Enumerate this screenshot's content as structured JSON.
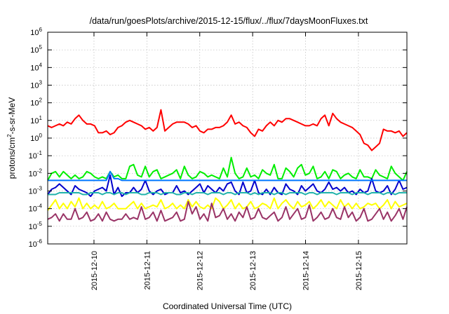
{
  "chart_data": {
    "type": "line",
    "title": "/data/run/goesPlots/archive/2015-12-15/flux/../flux/7daysMoonFluxes.txt",
    "xlabel": "Coordinated Universal Time (UTC)",
    "ylabel_base": "protons/cm",
    "ylabel_exp": "2",
    "ylabel_rest": "-s-sr-MeV",
    "yscale": "log",
    "ylim_exp": [
      -6,
      6
    ],
    "y_ticks": [
      {
        "exp": -6
      },
      {
        "exp": -5
      },
      {
        "exp": -4
      },
      {
        "exp": -3
      },
      {
        "exp": -2
      },
      {
        "exp": -1
      },
      {
        "exp": 0
      },
      {
        "exp": 1
      },
      {
        "exp": 2
      },
      {
        "exp": 3
      },
      {
        "exp": 4
      },
      {
        "exp": 5
      },
      {
        "exp": 6
      }
    ],
    "y_tick_base": "10",
    "x_range_days": [
      "2015-12-09 03:00",
      "2015-12-15 22:00"
    ],
    "x_ticks": [
      "2015-12-10",
      "2015-12-11",
      "2015-12-12",
      "2015-12-13",
      "2015-12-14",
      "2015-12-15"
    ],
    "grid": true,
    "series": [
      {
        "color": "#ff0000",
        "log10_values": [
          0.7,
          0.6,
          0.7,
          0.8,
          0.7,
          0.9,
          0.8,
          1.1,
          1.3,
          1.0,
          0.8,
          0.8,
          0.7,
          0.3,
          0.3,
          0.4,
          0.2,
          0.3,
          0.6,
          0.7,
          0.9,
          1.0,
          0.9,
          0.8,
          0.7,
          0.5,
          0.6,
          0.4,
          0.6,
          1.6,
          0.4,
          0.6,
          0.8,
          0.9,
          0.9,
          0.9,
          0.8,
          0.6,
          0.7,
          0.4,
          0.3,
          0.5,
          0.5,
          0.6,
          0.6,
          0.7,
          0.9,
          1.3,
          0.8,
          0.9,
          0.7,
          0.6,
          0.3,
          0.1,
          0.5,
          0.4,
          0.7,
          0.9,
          0.7,
          1.0,
          0.9,
          1.1,
          1.1,
          1.0,
          0.9,
          0.8,
          0.7,
          0.7,
          0.8,
          0.7,
          1.1,
          1.3,
          0.7,
          1.4,
          1.1,
          0.9,
          0.8,
          0.7,
          0.6,
          0.4,
          0.2,
          -0.3,
          -0.4,
          -0.7,
          -0.5,
          -0.3,
          0.5,
          0.4,
          0.4,
          0.3,
          0.4,
          0.1,
          0.3
        ]
      },
      {
        "color": "#00ee00",
        "log10_values": [
          -2.4,
          -2.0,
          -1.9,
          -2.2,
          -1.9,
          -2.1,
          -2.3,
          -2.1,
          -2.3,
          -2.2,
          -1.9,
          -2.0,
          -2.2,
          -2.3,
          -2.2,
          -2.3,
          -1.9,
          -2.2,
          -2.1,
          -2.3,
          -2.3,
          -1.6,
          -1.5,
          -2.1,
          -2.2,
          -1.6,
          -2.2,
          -1.9,
          -1.8,
          -2.3,
          -2.2,
          -2.1,
          -2.0,
          -1.8,
          -2.3,
          -1.6,
          -2.1,
          -2.3,
          -2.2,
          -1.9,
          -2.0,
          -2.2,
          -2.1,
          -2.2,
          -2.3,
          -1.7,
          -2.2,
          -1.1,
          -2.0,
          -2.3,
          -2.2,
          -1.7,
          -2.2,
          -2.1,
          -2.3,
          -1.8,
          -2.0,
          -2.1,
          -1.5,
          -2.3,
          -2.3,
          -1.7,
          -1.9,
          -2.2,
          -1.7,
          -1.5,
          -2.1,
          -2.0,
          -1.6,
          -2.3,
          -2.2,
          -1.9,
          -2.3,
          -1.8,
          -1.9,
          -2.3,
          -2.1,
          -2.0,
          -2.2,
          -2.3,
          -1.8,
          -2.2,
          -2.2,
          -2.3,
          -1.8,
          -2.1,
          -2.2,
          -2.3,
          -1.6,
          -2.0,
          -2.2,
          -2.4,
          -1.9
        ]
      },
      {
        "color": "#0000cc",
        "log10_values": [
          -3.2,
          -2.9,
          -2.8,
          -2.6,
          -2.8,
          -3.0,
          -3.2,
          -2.7,
          -2.9,
          -3.0,
          -3.1,
          -3.3,
          -3.0,
          -2.9,
          -2.8,
          -3.0,
          -2.1,
          -3.2,
          -2.8,
          -3.3,
          -3.1,
          -3.1,
          -2.8,
          -3.1,
          -2.9,
          -2.4,
          -3.0,
          -3.2,
          -3.0,
          -2.9,
          -3.2,
          -3.1,
          -3.1,
          -2.7,
          -3.1,
          -3.0,
          -3.2,
          -3.0,
          -2.8,
          -2.6,
          -3.1,
          -2.7,
          -2.9,
          -3.1,
          -2.8,
          -3.0,
          -2.6,
          -2.5,
          -3.0,
          -3.2,
          -2.5,
          -3.1,
          -3.0,
          -2.4,
          -3.1,
          -3.2,
          -2.9,
          -3.2,
          -2.8,
          -3.1,
          -3.2,
          -2.6,
          -2.9,
          -3.0,
          -3.2,
          -2.7,
          -3.0,
          -2.8,
          -2.6,
          -3.0,
          -3.1,
          -2.9,
          -2.5,
          -2.9,
          -2.8,
          -3.0,
          -2.8,
          -3.1,
          -3.0,
          -3.2,
          -2.9,
          -3.1,
          -3.0,
          -2.3,
          -3.0,
          -3.1,
          -3.0,
          -2.7,
          -3.2,
          -2.9,
          -2.4,
          -2.9,
          -2.8
        ]
      },
      {
        "color": "#0077ff",
        "log10_values": [
          -2.4,
          -2.4,
          -2.4,
          -2.4,
          -2.4,
          -2.4,
          -2.4,
          -2.4,
          -2.4,
          -2.4,
          -2.4,
          -2.4,
          -2.4,
          -2.4,
          -2.4,
          -2.4,
          -1.9,
          -2.3,
          -2.3,
          -2.4,
          -2.4,
          -2.4,
          -2.4,
          -2.4,
          -2.4,
          -2.4,
          -2.4,
          -2.4,
          -2.4,
          -2.4,
          -2.4,
          -2.4,
          -2.4,
          -2.4,
          -2.4,
          -2.4,
          -2.4,
          -2.4,
          -2.4,
          -2.4,
          -2.4,
          -2.4,
          -2.4,
          -2.4,
          -2.4,
          -2.4,
          -2.4,
          -2.4,
          -2.4,
          -2.4,
          -2.4,
          -2.4,
          -2.4,
          -2.4,
          -2.4,
          -2.4,
          -2.4,
          -2.4,
          -2.4,
          -2.4,
          -2.4,
          -2.4,
          -2.4,
          -2.4,
          -2.4,
          -2.4,
          -2.4,
          -2.4,
          -2.4,
          -2.4,
          -2.4,
          -2.4,
          -2.4,
          -2.4,
          -2.4,
          -2.4,
          -2.4,
          -2.4,
          -2.4,
          -2.4,
          -2.4,
          -2.4,
          -2.4,
          -2.4,
          -2.4,
          -2.4,
          -2.4,
          -2.4,
          -2.4,
          -2.4,
          -2.4,
          -2.4,
          -2.4
        ]
      },
      {
        "color": "#20b2aa",
        "log10_values": [
          -3.2,
          -3.2,
          -3.2,
          -3.1,
          -3.1,
          -3.1,
          -3.1,
          -3.1,
          -3.1,
          -3.2,
          -3.2,
          -3.1,
          -3.1,
          -3.1,
          -3.2,
          -3.1,
          -3.1,
          -3.2,
          -3.1,
          -3.1,
          -3.2,
          -3.1,
          -3.1,
          -3.1,
          -3.2,
          -3.2,
          -3.1,
          -3.1,
          -3.1,
          -3.2,
          -3.1,
          -3.1,
          -3.1,
          -3.2,
          -3.2,
          -3.1,
          -3.1,
          -3.2,
          -3.1,
          -3.1,
          -3.1,
          -3.2,
          -3.1,
          -3.1,
          -3.1,
          -3.2,
          -3.1,
          -3.1,
          -3.2,
          -3.1,
          -3.1,
          -3.1,
          -3.2,
          -3.1,
          -3.2,
          -3.1,
          -3.1,
          -3.1,
          -3.2,
          -3.1,
          -3.1,
          -3.2,
          -3.1,
          -3.1,
          -3.1,
          -3.1,
          -3.2,
          -3.1,
          -3.1,
          -3.2,
          -3.1,
          -3.1,
          -3.1,
          -3.1,
          -3.2,
          -3.1,
          -3.1,
          -3.1,
          -3.2,
          -3.1,
          -3.1,
          -3.1,
          -3.2,
          -3.1,
          -3.1,
          -3.1,
          -3.2,
          -3.1,
          -3.1,
          -3.2,
          -3.1,
          -3.1,
          -3.1
        ]
      },
      {
        "color": "#ffff00",
        "log10_values": [
          -4.1,
          -3.8,
          -3.5,
          -4.0,
          -3.7,
          -4.0,
          -3.6,
          -3.9,
          -3.4,
          -4.0,
          -3.7,
          -4.0,
          -3.8,
          -4.0,
          -3.6,
          -4.0,
          -3.9,
          -3.7,
          -4.0,
          -4.0,
          -4.0,
          -3.8,
          -3.6,
          -4.0,
          -3.7,
          -4.0,
          -3.9,
          -3.8,
          -3.9,
          -3.5,
          -4.0,
          -3.9,
          -3.7,
          -4.0,
          -3.8,
          -4.0,
          -3.5,
          -3.9,
          -3.6,
          -3.9,
          -4.0,
          -3.8,
          -4.0,
          -3.4,
          -3.6,
          -4.0,
          -3.8,
          -3.5,
          -4.0,
          -3.7,
          -4.0,
          -3.9,
          -3.6,
          -4.0,
          -3.9,
          -3.7,
          -3.8,
          -4.0,
          -3.4,
          -4.0,
          -3.7,
          -3.5,
          -3.8,
          -4.0,
          -3.6,
          -3.9,
          -3.8,
          -3.6,
          -4.0,
          -3.8,
          -3.5,
          -3.9,
          -3.6,
          -3.8,
          -4.0,
          -3.5,
          -3.9,
          -3.7,
          -4.0,
          -3.7,
          -4.0,
          -3.9,
          -3.7,
          -3.8,
          -3.7,
          -4.0,
          -3.8,
          -3.5,
          -4.0,
          -3.6,
          -3.9,
          -3.8,
          -3.7
        ]
      },
      {
        "color": "#993366",
        "log10_values": [
          -4.6,
          -4.5,
          -4.3,
          -4.7,
          -4.3,
          -4.6,
          -4.6,
          -4.0,
          -4.6,
          -4.5,
          -4.2,
          -4.7,
          -4.6,
          -4.3,
          -4.7,
          -4.2,
          -4.6,
          -4.7,
          -4.6,
          -4.6,
          -4.3,
          -4.6,
          -4.5,
          -4.6,
          -3.9,
          -4.6,
          -4.5,
          -4.2,
          -4.7,
          -4.1,
          -4.7,
          -4.6,
          -4.5,
          -4.2,
          -4.7,
          -4.6,
          -3.6,
          -4.3,
          -3.9,
          -4.6,
          -4.3,
          -4.7,
          -3.7,
          -4.5,
          -4.4,
          -4.0,
          -4.6,
          -4.3,
          -4.7,
          -4.2,
          -4.5,
          -3.9,
          -4.6,
          -4.5,
          -4.0,
          -4.5,
          -4.6,
          -4.4,
          -4.2,
          -4.7,
          -4.5,
          -3.9,
          -4.6,
          -4.3,
          -4.0,
          -4.6,
          -4.5,
          -3.8,
          -4.7,
          -4.5,
          -4.2,
          -4.6,
          -4.5,
          -4.0,
          -4.5,
          -4.6,
          -3.9,
          -4.5,
          -4.2,
          -4.7,
          -4.5,
          -4.0,
          -4.7,
          -4.6,
          -4.3,
          -4.0,
          -4.6,
          -4.2,
          -4.7,
          -4.4,
          -4.0,
          -4.6,
          -3.9
        ]
      }
    ]
  }
}
